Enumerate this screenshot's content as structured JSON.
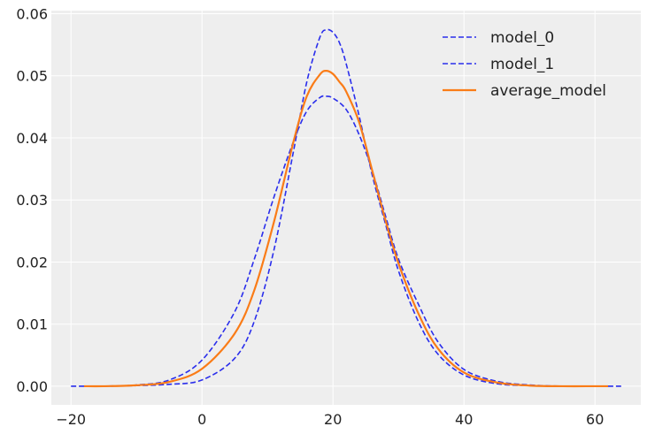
{
  "chart_data": {
    "type": "line",
    "title": "",
    "xlabel": "",
    "ylabel": "",
    "xlim": [
      -23,
      67
    ],
    "ylim": [
      -0.003,
      0.0605
    ],
    "grid": true,
    "legend_position": "top-right",
    "xticks": [
      -20,
      0,
      20,
      40,
      60
    ],
    "xtick_labels": [
      "−20",
      "0",
      "20",
      "40",
      "60"
    ],
    "yticks": [
      0,
      0.01,
      0.02,
      0.03,
      0.04,
      0.05,
      0.06
    ],
    "ytick_labels": [
      "0.00",
      "0.01",
      "0.02",
      "0.03",
      "0.04",
      "0.05",
      "0.06"
    ],
    "series": [
      {
        "name": "model_0",
        "style": "dashed",
        "color": "#2a2eec",
        "x": [
          -20,
          -15,
          -10,
          -5,
          0,
          5,
          8,
          11,
          14,
          16,
          18,
          19,
          20,
          21,
          22,
          24,
          26,
          28,
          30,
          33,
          36,
          40,
          45,
          50,
          55,
          60,
          64
        ],
        "y": [
          0,
          0,
          0.0001,
          0.0003,
          0.001,
          0.0045,
          0.0105,
          0.022,
          0.038,
          0.049,
          0.0562,
          0.0574,
          0.057,
          0.0553,
          0.052,
          0.0435,
          0.034,
          0.0262,
          0.0186,
          0.0105,
          0.0052,
          0.0018,
          0.0004,
          0.0001,
          0,
          0,
          0
        ]
      },
      {
        "name": "model_1",
        "style": "dashed",
        "color": "#2a2eec",
        "x": [
          -18,
          -15,
          -10,
          -5,
          0,
          5,
          8,
          11,
          14,
          16,
          18,
          19,
          20,
          22,
          24,
          26,
          28,
          30,
          33,
          36,
          40,
          45,
          50,
          55,
          60,
          62
        ],
        "y": [
          0,
          0,
          0.0002,
          0.001,
          0.0042,
          0.012,
          0.0205,
          0.0305,
          0.0395,
          0.0443,
          0.0465,
          0.0467,
          0.0464,
          0.0446,
          0.0405,
          0.0347,
          0.0275,
          0.0205,
          0.0133,
          0.0072,
          0.0027,
          0.0008,
          0.0002,
          0,
          0,
          0
        ]
      },
      {
        "name": "average_model",
        "style": "solid",
        "color": "#fa7c17",
        "x": [
          -18,
          -15,
          -10,
          -5,
          0,
          5,
          8,
          11,
          14,
          16,
          18,
          19,
          20,
          21,
          22,
          24,
          26,
          28,
          30,
          33,
          36,
          40,
          45,
          50,
          55,
          60,
          62
        ],
        "y": [
          0,
          0,
          0.00015,
          0.0007,
          0.0028,
          0.0085,
          0.0155,
          0.0265,
          0.0395,
          0.0467,
          0.0502,
          0.0508,
          0.0503,
          0.049,
          0.0475,
          0.0425,
          0.0347,
          0.0268,
          0.0198,
          0.0118,
          0.0061,
          0.0022,
          0.0006,
          0.0001,
          0,
          0,
          0
        ]
      }
    ]
  }
}
